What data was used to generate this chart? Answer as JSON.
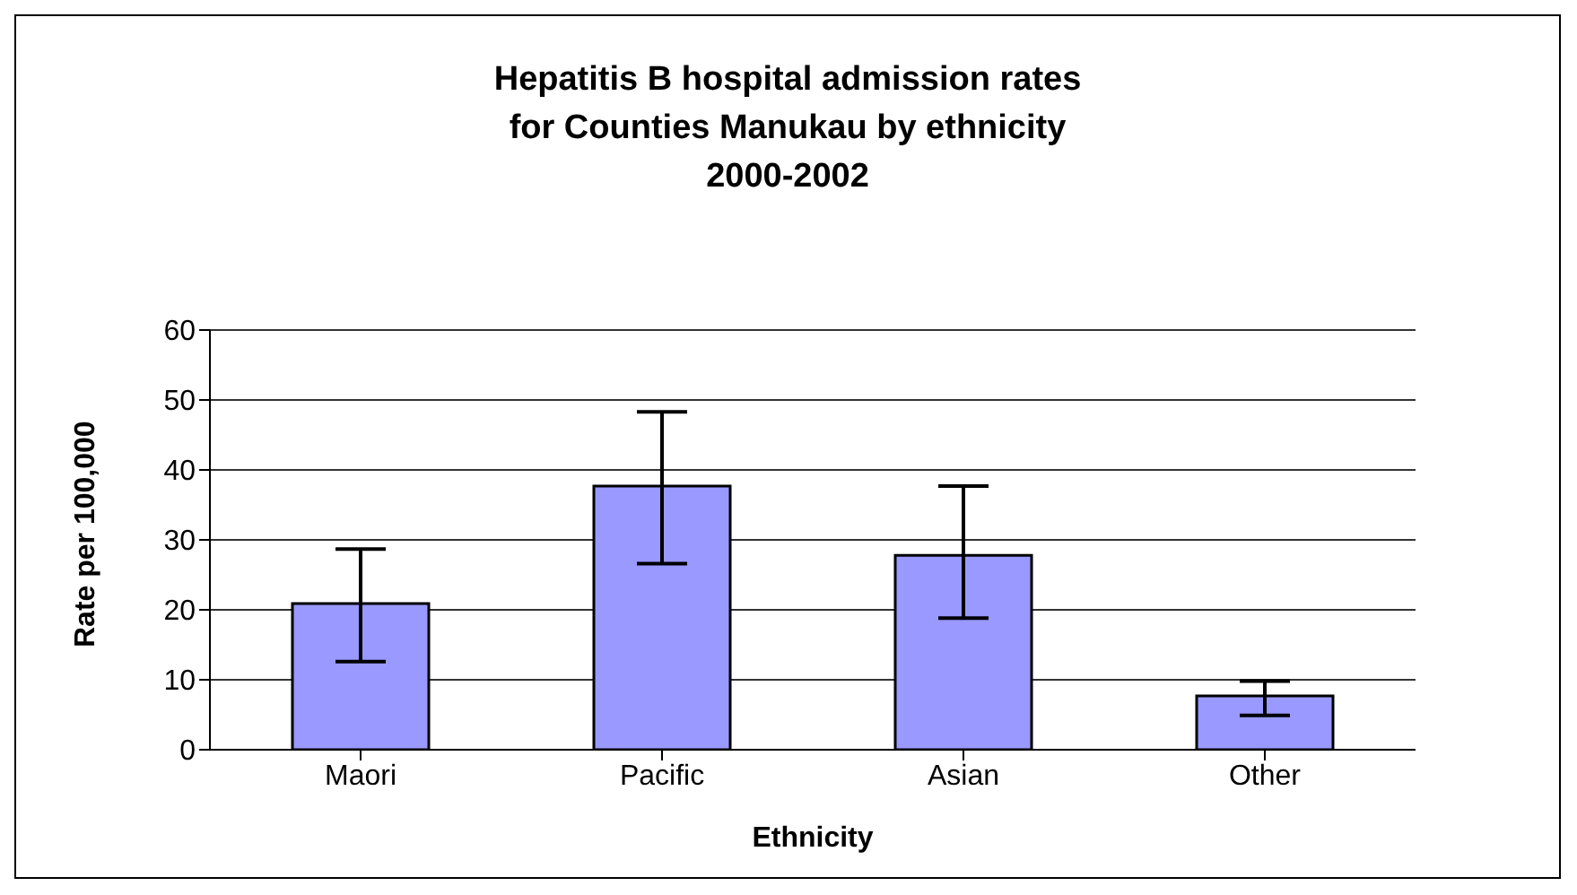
{
  "chart_data": {
    "type": "bar",
    "title": "Hepatitis B hospital admission rates\nfor Counties Manukau by ethnicity\n2000-2002",
    "xlabel": "Ethnicity",
    "ylabel": "Rate per 100,000",
    "categories": [
      "Maori",
      "Pacific",
      "Asian",
      "Other"
    ],
    "values": [
      20.9,
      37.7,
      27.8,
      7.7
    ],
    "errors": [
      [
        12.6,
        28.7
      ],
      [
        26.6,
        48.3
      ],
      [
        18.8,
        37.7
      ],
      [
        4.9,
        9.8
      ]
    ],
    "color": "#9999ff",
    "ylim": [
      0,
      60
    ],
    "yticks": [
      0,
      10,
      20,
      30,
      40,
      50,
      60
    ],
    "grid": "y",
    "legend": false
  }
}
